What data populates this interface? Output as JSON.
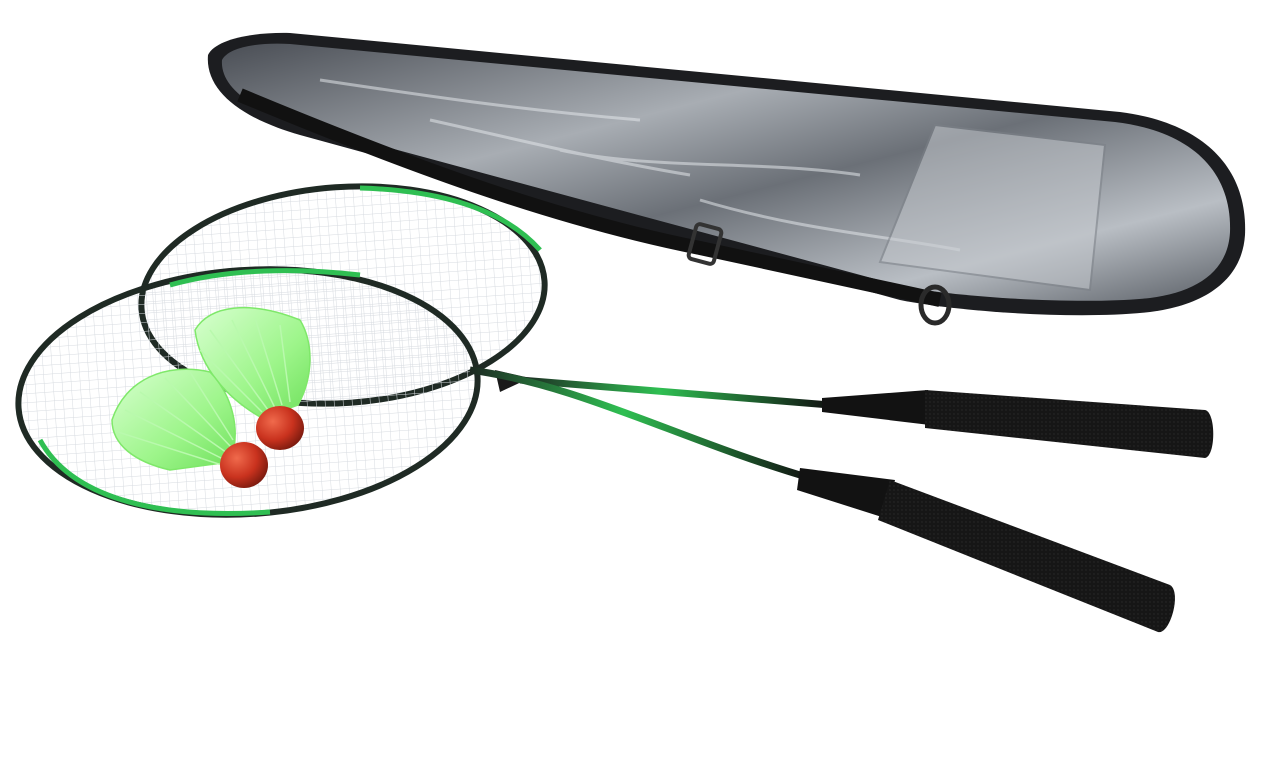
{
  "scene": {
    "subject": "badminton set",
    "objects": [
      {
        "name": "racket-case",
        "colors": {
          "body": "#1c1d20",
          "panel": "#8d9197",
          "highlight": "#cfd3d8"
        }
      },
      {
        "name": "racket",
        "count": 2,
        "colors": {
          "frame": "#1f2a24",
          "accent": "#2fbf52",
          "strings": "#e9ecef",
          "grip": "#151515"
        }
      },
      {
        "name": "shuttlecock",
        "count": 2,
        "colors": {
          "skirt": "#9df58a",
          "cork": "#c9321e"
        }
      }
    ]
  },
  "colors": {
    "background": "#ffffff"
  }
}
